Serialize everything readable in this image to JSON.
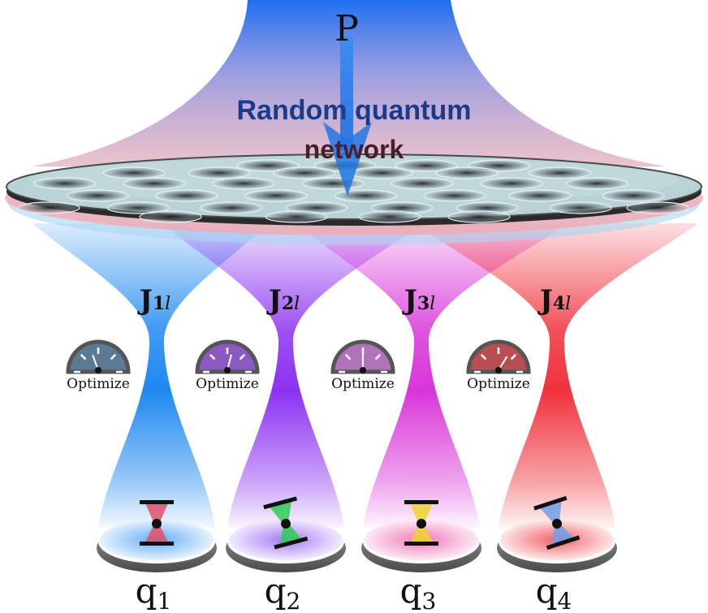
{
  "source_label": "P",
  "network": {
    "line1": "Random quantum",
    "line2": "network"
  },
  "colors": {
    "source_blue": "#1e78ea",
    "title_blue": "#1a3a8c",
    "title_dark": "#4a1d2c",
    "disk_fill": "#b9d2d6"
  },
  "channels": [
    {
      "id": "1",
      "coupling": "J",
      "index": "1",
      "index_sub": "l",
      "control": "Optimize",
      "qubit": "q",
      "qubit_sub": "1",
      "beam": "#1e88f0",
      "gauge": "#5b7a94",
      "spot": "#5aa8f5",
      "trap": "#e0506a",
      "trap_tilt": 0,
      "needle": -0.35
    },
    {
      "id": "2",
      "coupling": "J",
      "index": "2",
      "index_sub": "l",
      "control": "Optimize",
      "qubit": "q",
      "qubit_sub": "2",
      "beam": "#8c32f2",
      "gauge": "#8a5ac2",
      "spot": "#a074f5",
      "trap": "#2ecc52",
      "trap_tilt": -15,
      "needle": 0.25
    },
    {
      "id": "3",
      "coupling": "J",
      "index": "3",
      "index_sub": "l",
      "control": "Optimize",
      "qubit": "q",
      "qubit_sub": "3",
      "beam": "#d936d9",
      "gauge": "#b072b8",
      "spot": "#f070b5",
      "trap": "#f0d430",
      "trap_tilt": 0,
      "needle": 0.0
    },
    {
      "id": "4",
      "coupling": "J",
      "index": "4",
      "index_sub": "l",
      "control": "Optimize",
      "qubit": "q",
      "qubit_sub": "4",
      "beam": "#f0323c",
      "gauge": "#b84e52",
      "spot": "#f05a62",
      "trap": "#6fa0e8",
      "trap_tilt": -18,
      "needle": 0.55
    }
  ]
}
